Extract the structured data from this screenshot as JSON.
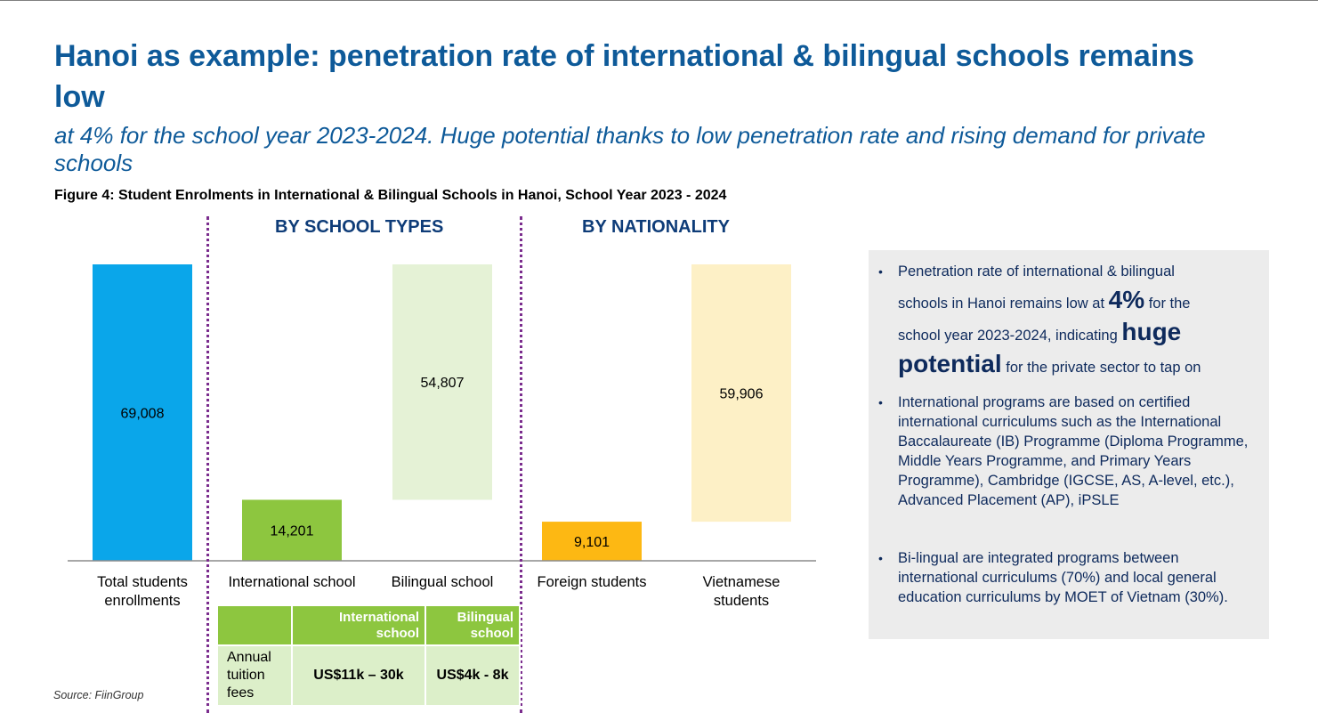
{
  "title": "Hanoi as example: penetration rate of international & bilingual schools remains low",
  "subtitle": "at 4% for the school year 2023-2024. Huge potential thanks to low penetration rate and rising demand for private schools",
  "figure_caption": "Figure 4: Student Enrolments in International & Bilingual Schools in Hanoi, School Year 2023 - 2024",
  "sections": {
    "school_types": "BY SCHOOL TYPES",
    "nationality": "BY NATIONALITY"
  },
  "colors": {
    "title": "#0e5a99",
    "total": "#0aa6ea",
    "international": "#8dc63f",
    "bilingual": "#e5f2d6",
    "foreign": "#fdb813",
    "vietnamese": "#fdf0c6",
    "divider": "#7b2d8e"
  },
  "chart_data": {
    "type": "bar",
    "subtype": "waterfall",
    "categories": [
      "Total students enrollments",
      "International school",
      "Bilingual school",
      "Foreign students",
      "Vietnamese students"
    ],
    "category_label_lines": [
      [
        "Total students",
        "enrollments"
      ],
      [
        "International school"
      ],
      [
        "Bilingual school"
      ],
      [
        "Foreign students"
      ],
      [
        "Vietnamese",
        "students"
      ]
    ],
    "values": [
      69008,
      14201,
      54807,
      9101,
      59906
    ],
    "bases": [
      0,
      0,
      14201,
      0,
      9101
    ],
    "data_labels": [
      "69,008",
      "14,201",
      "54,807",
      "9,101",
      "59,906"
    ],
    "ylim": [
      0,
      69008
    ],
    "grid": false,
    "legend": "none"
  },
  "fees_table": {
    "headers": [
      "International school",
      "Bilingual school"
    ],
    "row_label": "Annual tuition fees",
    "row_label_lines": [
      "Annual",
      "tuition",
      "fees"
    ],
    "values": [
      "US$11k – 30k",
      "US$4k - 8k"
    ]
  },
  "panel": {
    "bullet1": {
      "a": "Penetration rate of international & bilingual",
      "b": "schools in Hanoi remains low at",
      "big_value": "4%",
      "c": "for the",
      "d": "school year 2023-2024, indicating",
      "huge": "huge",
      "potential": "potential",
      "e": "for the private sector to tap on"
    },
    "bullet2": "International programs are based on certified international curriculums such as the International Baccalaureate (IB) Programme (Diploma Programme, Middle Years Programme, and Primary Years Programme), Cambridge (IGCSE, AS, A-level, etc.), Advanced Placement (AP), iPSLE",
    "bullet3": "Bi-lingual are integrated programs between international curriculums (70%) and local general education curriculums by MOET of Vietnam (30%)."
  },
  "source": "Source: FiinGroup"
}
